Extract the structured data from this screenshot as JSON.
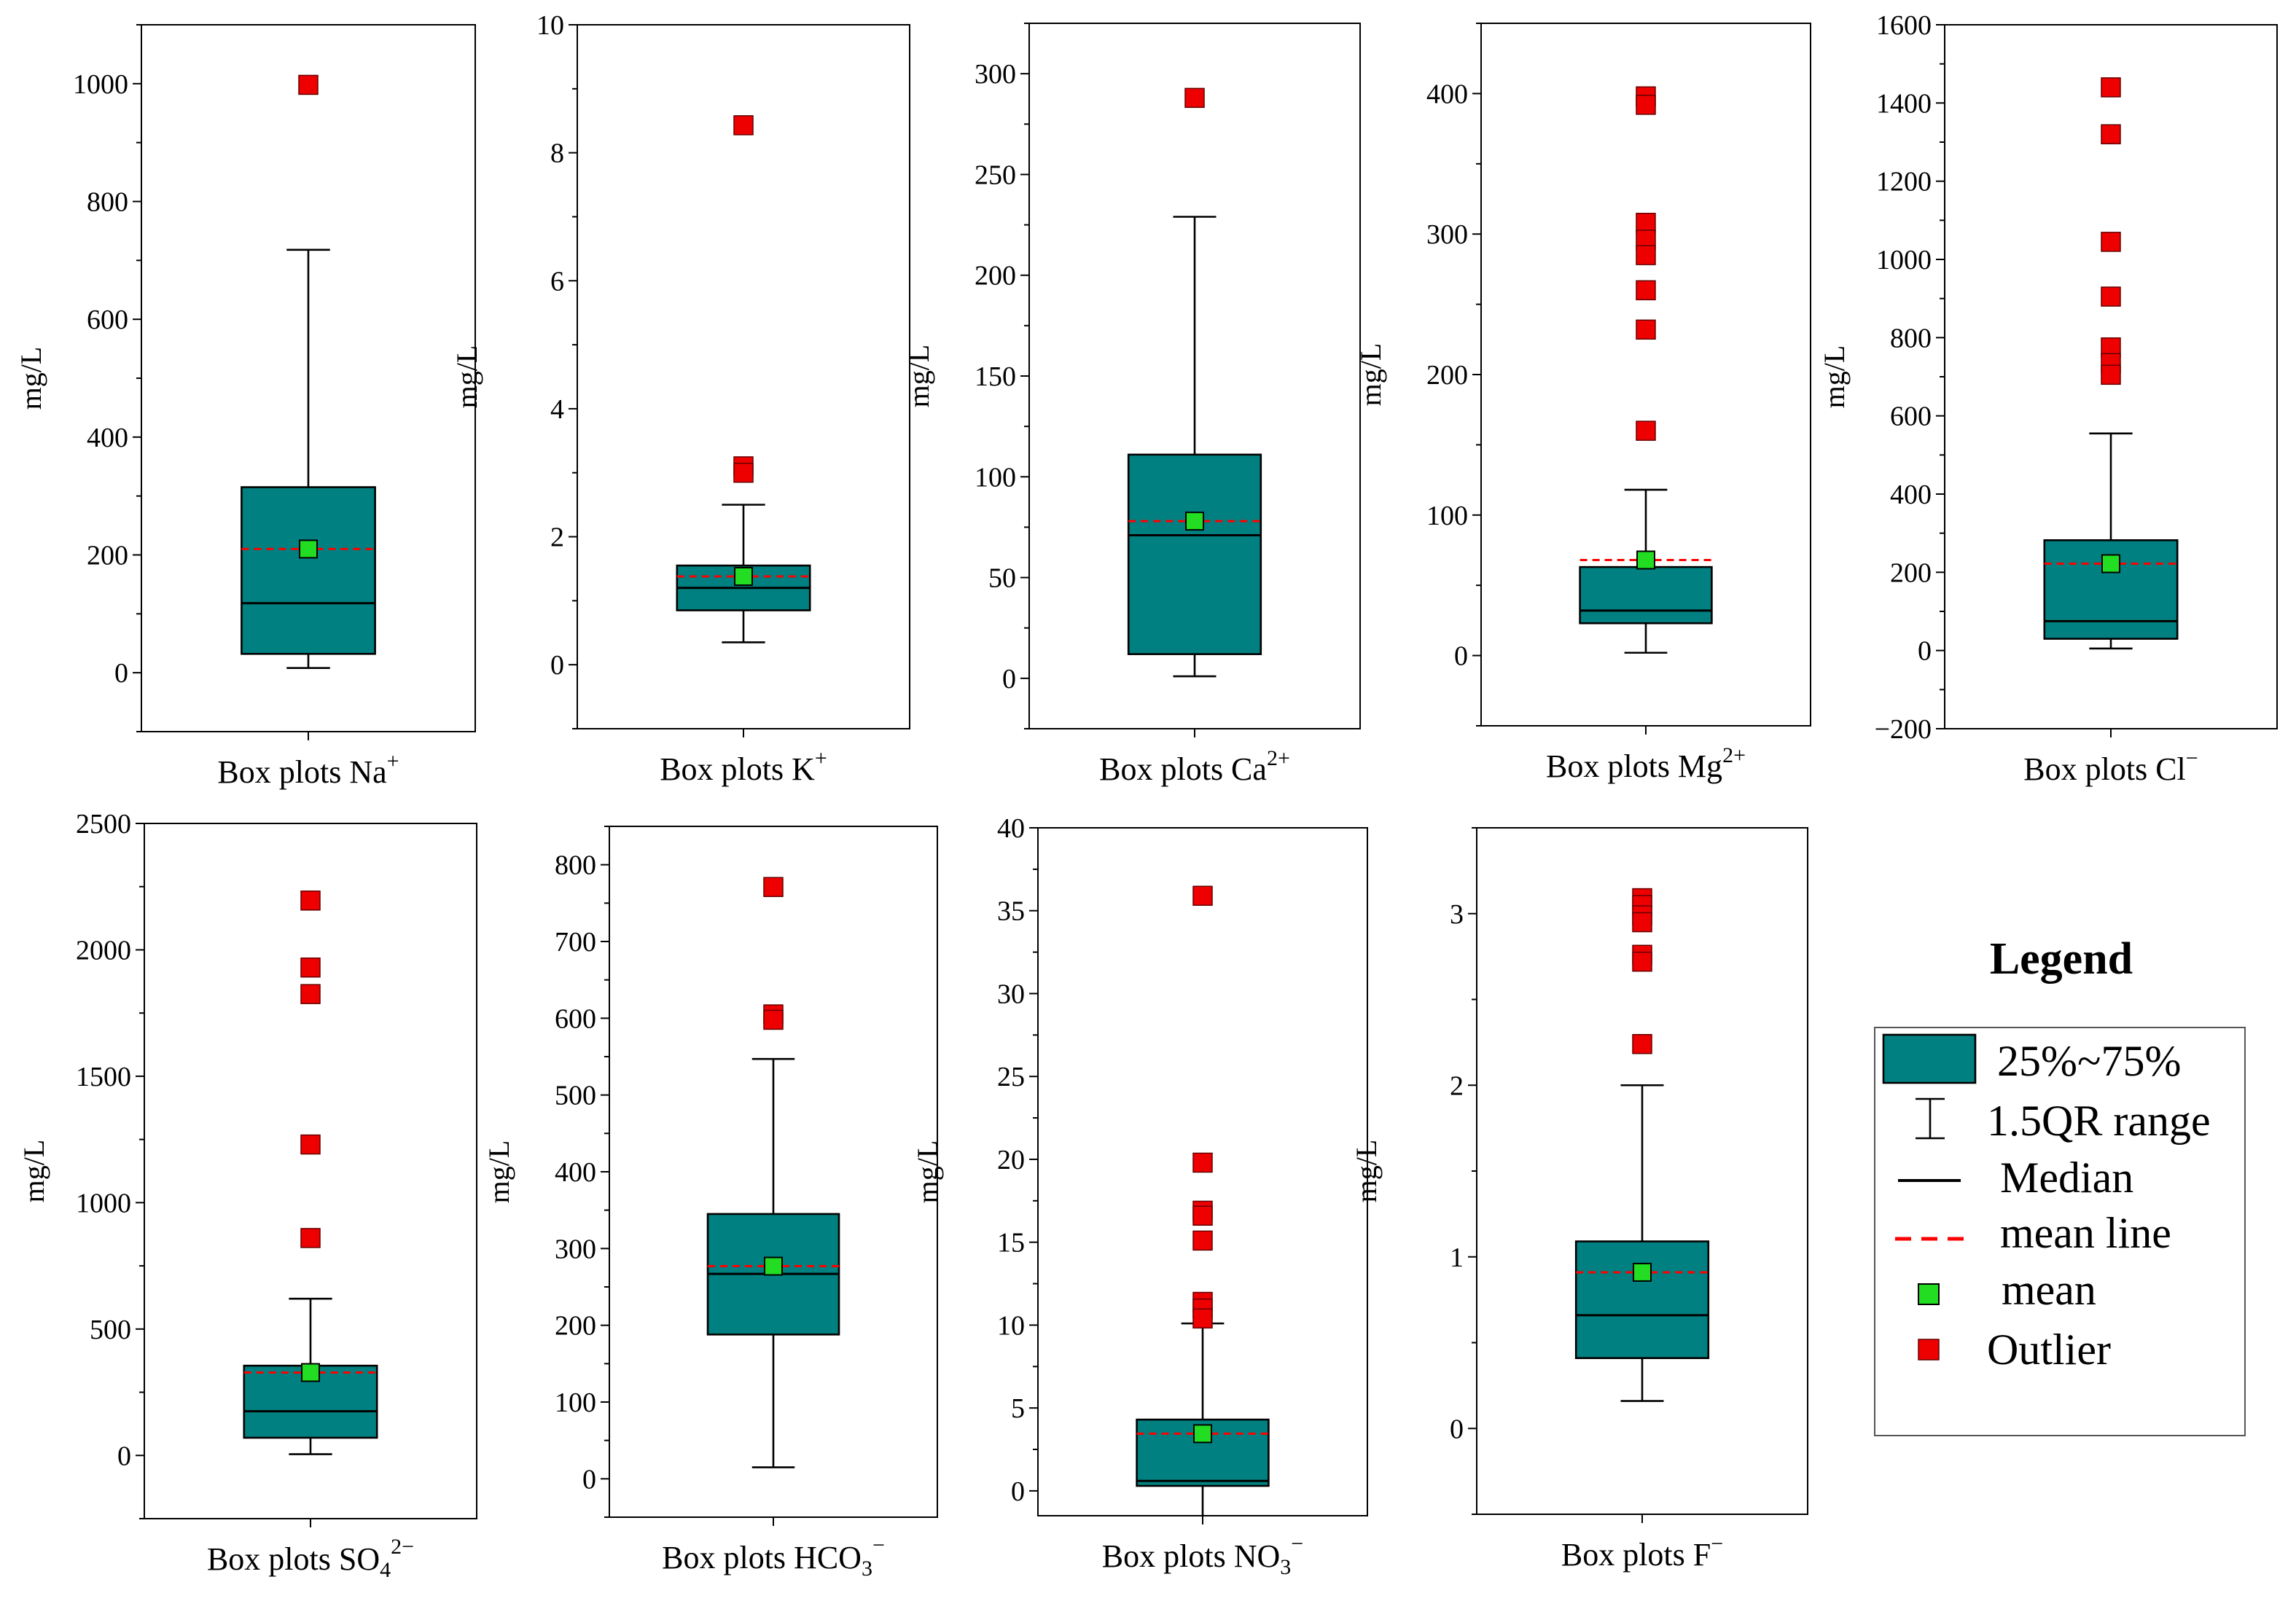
{
  "chart_data": [
    {
      "type": "box",
      "label": "Box plots Na",
      "ion": "+",
      "ylabel": "mg/L",
      "ylim": [
        -100,
        1100
      ],
      "yticks": [
        0,
        200,
        400,
        600,
        800,
        1000
      ],
      "q1": 32,
      "q3": 315,
      "median": 118,
      "mean": 210,
      "whisker_low": 8,
      "whisker_high": 718,
      "outliers": [
        998
      ]
    },
    {
      "type": "box",
      "label": "Box plots K",
      "ion": "+",
      "ylabel": "mg/L",
      "ylim": [
        -1,
        10
      ],
      "yticks": [
        0,
        2,
        4,
        6,
        8,
        10
      ],
      "q1": 0.85,
      "q3": 1.55,
      "median": 1.2,
      "mean": 1.38,
      "whisker_low": 0.35,
      "whisker_high": 2.5,
      "outliers": [
        8.43,
        3.1,
        3.0
      ]
    },
    {
      "type": "box",
      "label": "Box plots Ca",
      "ion": "2+",
      "ylabel": "mg/L",
      "ylim": [
        -25,
        325
      ],
      "yticks": [
        0,
        50,
        100,
        150,
        200,
        250,
        300
      ],
      "q1": 12,
      "q3": 111,
      "median": 71,
      "mean": 78,
      "whisker_low": 1,
      "whisker_high": 229,
      "outliers": [
        288
      ]
    },
    {
      "type": "box",
      "label": "Box plots Mg",
      "ion": "2+",
      "ylabel": "mg/L",
      "ylim": [
        -50,
        450
      ],
      "yticks": [
        0,
        100,
        200,
        300,
        400
      ],
      "q1": 23,
      "q3": 63,
      "median": 32,
      "mean": 68,
      "whisker_low": 2,
      "whisker_high": 118,
      "outliers": [
        398,
        392,
        308,
        296,
        285,
        260,
        232,
        160
      ]
    },
    {
      "type": "box",
      "label": "Box plots Cl",
      "ion": "−",
      "ylabel": "mg/L",
      "ylim": [
        -200,
        1600
      ],
      "yticks": [
        -200,
        0,
        200,
        400,
        600,
        800,
        1000,
        1200,
        1400,
        1600
      ],
      "q1": 30,
      "q3": 282,
      "median": 75,
      "mean": 222,
      "whisker_low": 5,
      "whisker_high": 555,
      "outliers": [
        1440,
        1320,
        1045,
        905,
        775,
        735,
        705
      ]
    },
    {
      "type": "box",
      "label": "Box plots SO",
      "ion": "2−",
      "subscript": "4",
      "ylabel": "mg/L",
      "ylim": [
        -250,
        2500
      ],
      "yticks": [
        0,
        500,
        1000,
        1500,
        2000,
        2500
      ],
      "q1": 70,
      "q3": 355,
      "median": 175,
      "mean": 328,
      "whisker_low": 5,
      "whisker_high": 620,
      "outliers": [
        2195,
        1930,
        1825,
        1230,
        860
      ]
    },
    {
      "type": "box",
      "label": "Box plots HCO",
      "ion": "−",
      "subscript": "3",
      "ylabel": "mg/L",
      "ylim": [
        -50,
        850
      ],
      "yticks": [
        0,
        100,
        200,
        300,
        400,
        500,
        600,
        700,
        800
      ],
      "q1": 188,
      "q3": 345,
      "median": 267,
      "mean": 277,
      "whisker_low": 15,
      "whisker_high": 547,
      "outliers": [
        771,
        605,
        598
      ]
    },
    {
      "type": "box",
      "label": "Box plots NO",
      "ion": "−",
      "subscript": "3",
      "ylabel": "mg/L",
      "ylim": [
        -1.5,
        40
      ],
      "yticks": [
        0,
        5,
        10,
        15,
        20,
        25,
        30,
        35,
        40
      ],
      "q1": 0.3,
      "q3": 4.3,
      "median": 0.6,
      "mean": 3.45,
      "whisker_low": -1.5,
      "whisker_high": 10.1,
      "outliers": [
        35.9,
        19.8,
        16.9,
        16.6,
        15.1,
        11.4,
        11.0,
        10.4
      ]
    },
    {
      "type": "box",
      "label": "Box plots F",
      "ion": "−",
      "ylabel": "mg/L",
      "ylim": [
        -0.5,
        3.5
      ],
      "yticks": [
        0,
        1,
        2,
        3
      ],
      "q1": 0.41,
      "q3": 1.09,
      "median": 0.66,
      "mean": 0.91,
      "whisker_low": 0.16,
      "whisker_high": 2.0,
      "outliers": [
        3.09,
        3.05,
        2.99,
        2.95,
        2.76,
        2.72,
        2.24
      ]
    }
  ],
  "legend": {
    "title": "Legend",
    "items": [
      {
        "key": "box",
        "label": "25%~75%"
      },
      {
        "key": "whisker",
        "label": "1.5QR range"
      },
      {
        "key": "median",
        "label": "Median"
      },
      {
        "key": "meanline",
        "label": "mean line"
      },
      {
        "key": "mean",
        "label": "mean"
      },
      {
        "key": "outlier",
        "label": "Outlier"
      }
    ]
  },
  "colors": {
    "box": "#008080",
    "mean_marker": "#22dd22",
    "outlier": "#ee0000",
    "mean_line": "#ff0000"
  }
}
